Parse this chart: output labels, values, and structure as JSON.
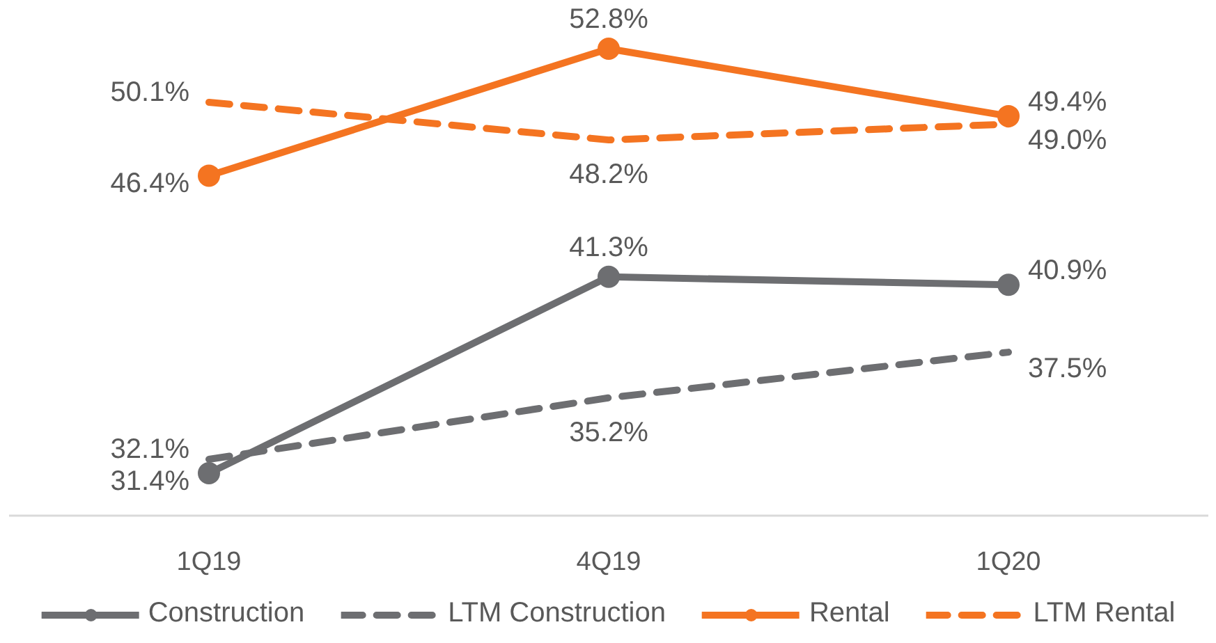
{
  "chart_data": {
    "type": "line",
    "categories": [
      "1Q19",
      "4Q19",
      "1Q20"
    ],
    "tick_labels": "x",
    "grid": false,
    "legend": "bottom",
    "series": [
      {
        "name": "Construction",
        "color": "#6d6e71",
        "values": [
          31.4,
          41.3,
          40.9
        ],
        "marker": "circle",
        "line_style": "solid",
        "value_labels": [
          "31.4%",
          "41.3%",
          "40.9%"
        ]
      },
      {
        "name": "LTM Construction",
        "color": "#6d6e71",
        "values": [
          32.1,
          35.2,
          37.5
        ],
        "marker": "none",
        "line_style": "dashed",
        "value_labels": [
          "32.1%",
          "35.2%",
          "37.5%"
        ]
      },
      {
        "name": "Rental",
        "color": "#f47421",
        "values": [
          46.4,
          52.8,
          49.4
        ],
        "marker": "circle",
        "line_style": "solid",
        "value_labels": [
          "46.4%",
          "52.8%",
          "49.4%"
        ]
      },
      {
        "name": "LTM Rental",
        "color": "#f47421",
        "values": [
          50.1,
          48.2,
          49.0
        ],
        "marker": "none",
        "line_style": "dashed",
        "value_labels": [
          "50.1%",
          "48.2%",
          "49.0%"
        ]
      }
    ]
  }
}
